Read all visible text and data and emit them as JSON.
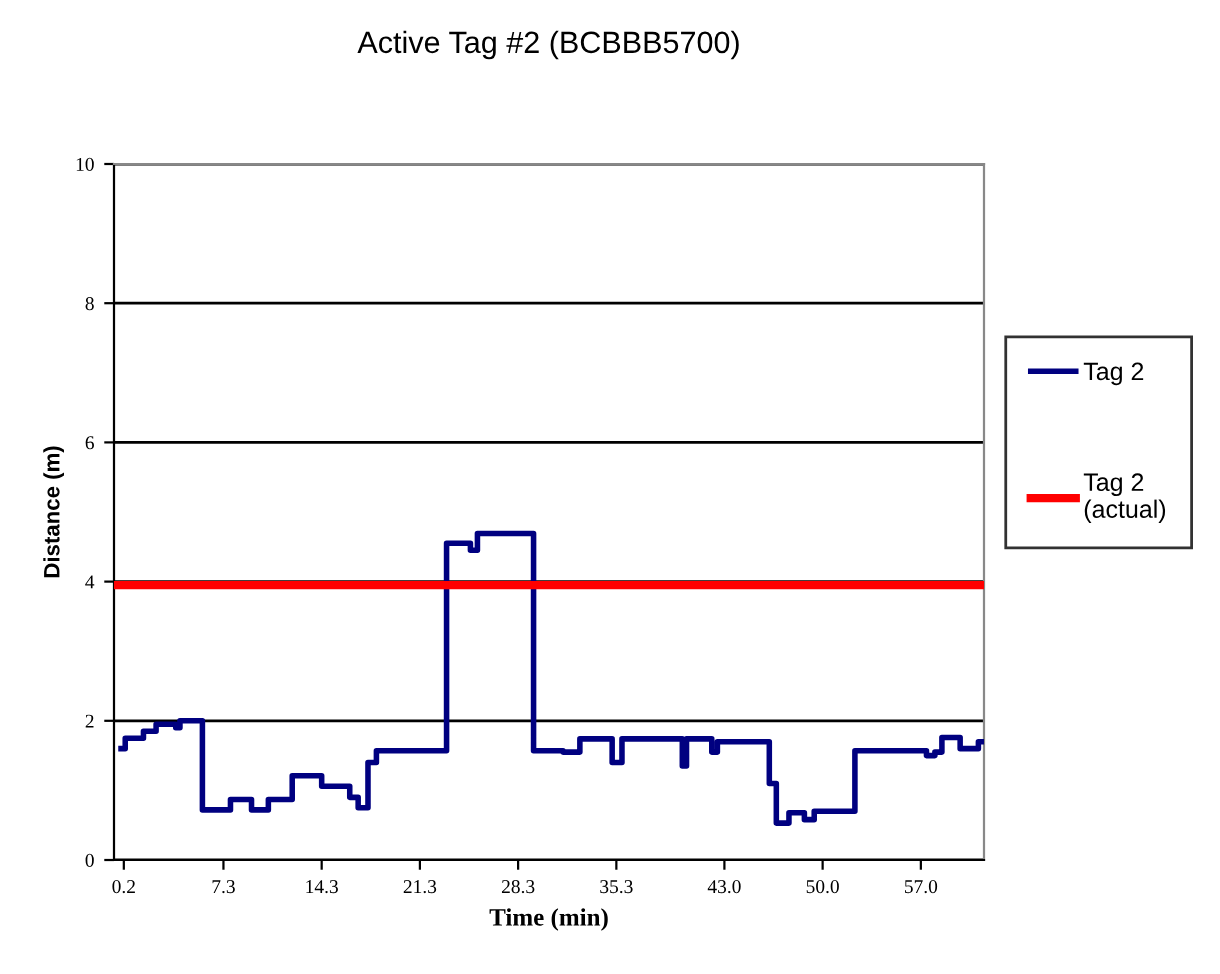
{
  "chart_data": {
    "type": "line",
    "title": "Active Tag #2 (BCBBB5700)",
    "xlabel": "Time (min)",
    "ylabel": "Distance (m)",
    "xlim": [
      -0.5,
      61.5
    ],
    "ylim": [
      0,
      10
    ],
    "xticks": [
      {
        "value": 0.2,
        "label": "0.2"
      },
      {
        "value": 7.3,
        "label": "7.3"
      },
      {
        "value": 14.3,
        "label": "14.3"
      },
      {
        "value": 21.3,
        "label": "21.3"
      },
      {
        "value": 28.3,
        "label": "28.3"
      },
      {
        "value": 35.3,
        "label": "35.3"
      },
      {
        "value": 43.0,
        "label": "43.0"
      },
      {
        "value": 50.0,
        "label": "50.0"
      },
      {
        "value": 57.0,
        "label": "57.0"
      }
    ],
    "yticks": [
      0,
      2,
      4,
      6,
      8,
      10
    ],
    "grid": "y",
    "legend": "right",
    "line_style": "solid",
    "marker": "none",
    "series": [
      {
        "name": "Tag 2",
        "color": "#000080",
        "type": "step",
        "x": [
          0.0,
          0.3,
          1.6,
          2.5,
          3.9,
          4.2,
          5.8,
          7.8,
          9.3,
          10.5,
          12.2,
          14.3,
          16.3,
          16.9,
          17.6,
          18.2,
          23.2,
          24.9,
          25.4,
          29.4,
          31.5,
          32.7,
          35.0,
          35.7,
          40.0,
          40.3,
          42.1,
          42.5,
          46.2,
          46.7,
          47.6,
          48.7,
          49.4,
          52.3,
          57.4,
          58.0,
          58.5,
          59.8,
          61.1,
          61.4
        ],
        "values": [
          1.6,
          1.75,
          1.85,
          1.95,
          1.9,
          2.0,
          0.72,
          0.87,
          0.72,
          0.87,
          1.21,
          1.06,
          0.9,
          0.75,
          1.4,
          1.57,
          4.55,
          4.45,
          4.69,
          1.57,
          1.55,
          1.74,
          1.4,
          1.74,
          1.35,
          1.74,
          1.55,
          1.7,
          1.1,
          0.53,
          0.68,
          0.58,
          0.7,
          1.57,
          1.5,
          1.55,
          1.76,
          1.6,
          1.7,
          1.7
        ]
      },
      {
        "name": "Tag 2\n(actual)",
        "color": "#ff0000",
        "x": [
          -0.5,
          61.5
        ],
        "values": [
          3.95,
          3.95
        ]
      }
    ]
  }
}
